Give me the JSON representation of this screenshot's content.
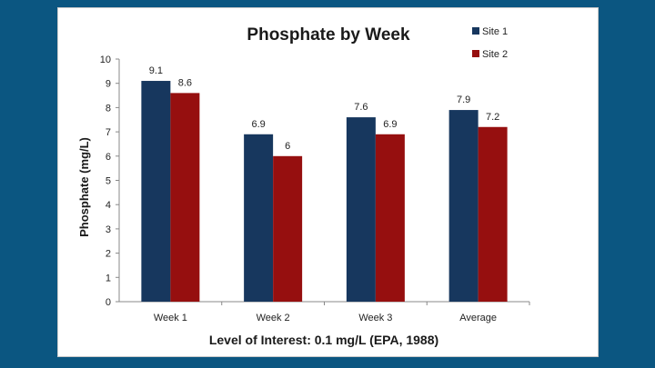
{
  "chart_data": {
    "type": "bar",
    "title": "Phosphate by Week",
    "xlabel": "Level of Interest: 0.1 mg/L (EPA, 1988)",
    "ylabel": "Phosphate (mg/L)",
    "ylim": [
      0,
      10
    ],
    "yticks": [
      0,
      1,
      2,
      3,
      4,
      5,
      6,
      7,
      8,
      9,
      10
    ],
    "categories": [
      "Week 1",
      "Week 2",
      "Week 3",
      "Average"
    ],
    "series": [
      {
        "name": "Site 1",
        "color": "#17375e",
        "values": [
          9.1,
          6.9,
          7.6,
          7.9
        ]
      },
      {
        "name": "Site 2",
        "color": "#960f0f",
        "values": [
          8.6,
          6,
          6.9,
          7.2
        ]
      }
    ],
    "legend_position": "top-right",
    "grid": false
  }
}
